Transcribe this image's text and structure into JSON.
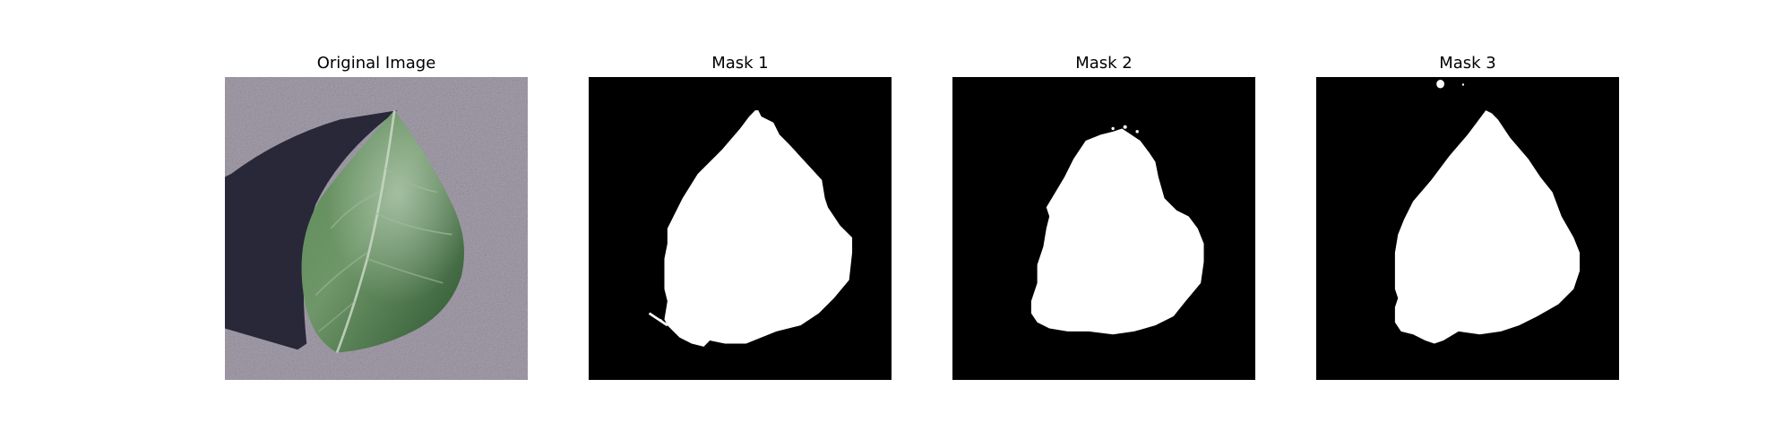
{
  "panels": [
    {
      "title": "Original Image"
    },
    {
      "title": "Mask 1"
    },
    {
      "title": "Mask 2"
    },
    {
      "title": "Mask 3"
    }
  ],
  "colors": {
    "background": "#ffffff",
    "mask_background": "#000000",
    "mask_foreground": "#ffffff",
    "surface": "#a59fac",
    "leaf_dark": "#2f5330",
    "leaf_light": "#6a9064",
    "shadow": "#1c1c2e"
  }
}
